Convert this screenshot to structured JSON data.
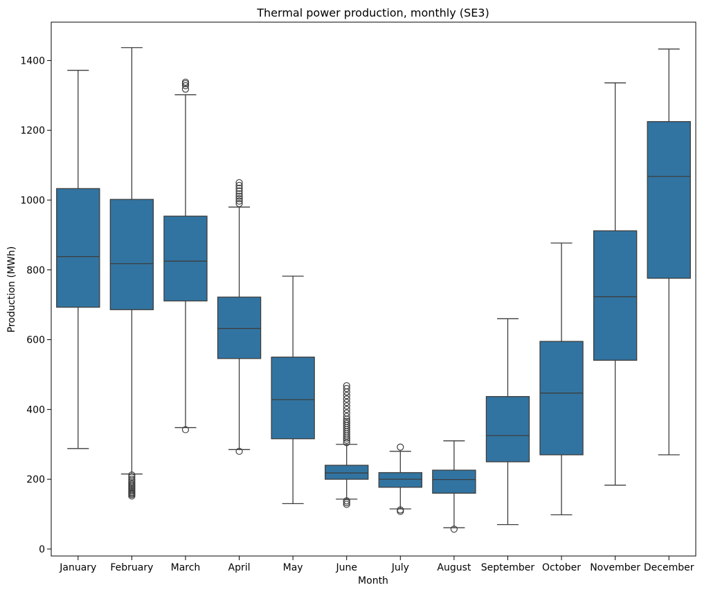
{
  "chart_data": {
    "type": "box",
    "title": "Thermal power production, monthly (SE3)",
    "xlabel": "Month",
    "ylabel": "Production (MWh)",
    "ylim": [
      -20,
      1510
    ],
    "yticks": [
      0,
      200,
      400,
      600,
      800,
      1000,
      1200,
      1400
    ],
    "grid": false,
    "legend": "none",
    "box_color": "#3274a1",
    "line_color": "#3c3c3c",
    "categories": [
      "January",
      "February",
      "March",
      "April",
      "May",
      "June",
      "July",
      "August",
      "September",
      "October",
      "November",
      "December"
    ],
    "boxes": [
      {
        "whisker_low": 288,
        "q1": 693,
        "median": 838,
        "q3": 1033,
        "whisker_high": 1372,
        "outliers": []
      },
      {
        "whisker_low": 215,
        "q1": 686,
        "median": 818,
        "q3": 1002,
        "whisker_high": 1437,
        "outliers": [
          212,
          206,
          200,
          195,
          190,
          186,
          182,
          178,
          174,
          170,
          166,
          162,
          159,
          156,
          152
        ]
      },
      {
        "whisker_low": 348,
        "q1": 711,
        "median": 825,
        "q3": 954,
        "whisker_high": 1302,
        "outliers": [
          342,
          1318,
          1328,
          1334,
          1338
        ]
      },
      {
        "whisker_low": 285,
        "q1": 546,
        "median": 632,
        "q3": 722,
        "whisker_high": 980,
        "outliers": [
          280,
          990,
          997,
          1004,
          1011,
          1018,
          1026,
          1034,
          1042,
          1050
        ]
      },
      {
        "whisker_low": 130,
        "q1": 316,
        "median": 428,
        "q3": 550,
        "whisker_high": 782,
        "outliers": []
      },
      {
        "whisker_low": 143,
        "q1": 200,
        "median": 218,
        "q3": 240,
        "whisker_high": 300,
        "outliers": [
          128,
          133,
          138,
          305,
          312,
          318,
          324,
          330,
          336,
          342,
          348,
          354,
          360,
          366,
          372,
          380,
          390,
          400,
          410,
          420,
          430,
          440,
          450,
          460,
          468
        ]
      },
      {
        "whisker_low": 115,
        "q1": 177,
        "median": 200,
        "q3": 219,
        "whisker_high": 280,
        "outliers": [
          108,
          112,
          292
        ]
      },
      {
        "whisker_low": 61,
        "q1": 160,
        "median": 199,
        "q3": 226,
        "whisker_high": 310,
        "outliers": [
          57
        ]
      },
      {
        "whisker_low": 70,
        "q1": 250,
        "median": 325,
        "q3": 437,
        "whisker_high": 660,
        "outliers": []
      },
      {
        "whisker_low": 98,
        "q1": 270,
        "median": 447,
        "q3": 595,
        "whisker_high": 877,
        "outliers": []
      },
      {
        "whisker_low": 183,
        "q1": 541,
        "median": 723,
        "q3": 912,
        "whisker_high": 1336,
        "outliers": []
      },
      {
        "whisker_low": 270,
        "q1": 776,
        "median": 1068,
        "q3": 1225,
        "whisker_high": 1433,
        "outliers": []
      }
    ]
  }
}
